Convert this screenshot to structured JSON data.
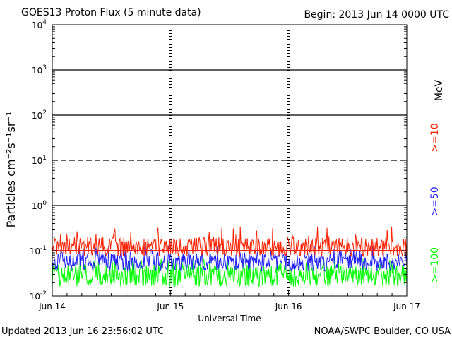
{
  "header": {
    "title": "GOES13 Proton Flux (5 minute data)",
    "begin": "Begin: 2013 Jun 14 0000 UTC"
  },
  "footer": {
    "updated": "Updated 2013 Jun 16 23:56:02 UTC",
    "credit": "NOAA/SWPC Boulder, CO USA"
  },
  "colors": {
    "ge10": "#ff2000",
    "ge50": "#2020ff",
    "ge100": "#00ff00",
    "grid": "#000000",
    "background": "#ffffff"
  },
  "chart_data": {
    "type": "line",
    "title": "GOES13 Proton Flux (5 minute data)",
    "xlabel": "Universal Time",
    "ylabel": "Particles cm⁻²s⁻¹sr⁻¹",
    "yscale": "log",
    "ylim": [
      0.01,
      10000
    ],
    "x_range_days": [
      0,
      3
    ],
    "x_ticks": [
      {
        "label": "Jun 14",
        "day": 0
      },
      {
        "label": "Jun 15",
        "day": 1
      },
      {
        "label": "Jun 16",
        "day": 2
      },
      {
        "label": "Jun 17",
        "day": 3
      }
    ],
    "y_ticks": [
      {
        "value": 0.01,
        "base": "10",
        "exp": "-2"
      },
      {
        "value": 0.1,
        "base": "10",
        "exp": "-1"
      },
      {
        "value": 1,
        "base": "10",
        "exp": "0"
      },
      {
        "value": 10,
        "base": "10",
        "exp": "1"
      },
      {
        "value": 100,
        "base": "10",
        "exp": "2"
      },
      {
        "value": 1000,
        "base": "10",
        "exp": "3"
      },
      {
        "value": 10000,
        "base": "10",
        "exp": "4"
      }
    ],
    "reference_lines": [
      {
        "value": 10,
        "style": "dashed"
      },
      {
        "value": 0.1,
        "style": "solid",
        "color": "#ff2000"
      }
    ],
    "grid": true,
    "legend_position": "right, vertical",
    "units_label": "MeV",
    "series": [
      {
        "name": ">=10",
        "color": "#ff2000",
        "typical_low": 0.075,
        "typical_high": 0.2,
        "spike_max": 0.35
      },
      {
        "name": ">=50",
        "color": "#2020ff",
        "typical_low": 0.035,
        "typical_high": 0.09,
        "spike_max": 0.13
      },
      {
        "name": ">=100",
        "color": "#00ff00",
        "typical_low": 0.016,
        "typical_high": 0.05,
        "spike_max": 0.07
      }
    ]
  }
}
